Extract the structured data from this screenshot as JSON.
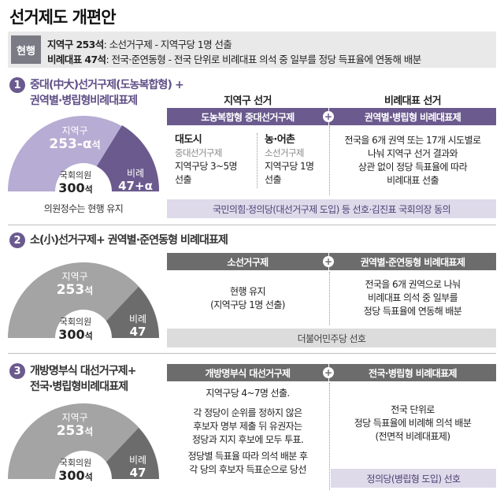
{
  "title": "선거제도 개편안",
  "colors": {
    "purple_dark": "#6b5a8e",
    "purple_light": "#b7acd3",
    "purple_pale": "#dedaea",
    "gray_dark": "#6c6c6c",
    "gray_light": "#a4a4a4",
    "gray_pale": "#dcdcdc",
    "badge_gray": "#7b7b85"
  },
  "current": {
    "tag": "현행",
    "district_label": "지역구 253석",
    "district_desc": ": 소선거구제 - 지역구당 1명 선출",
    "pr_label": "비례대표 47석",
    "pr_desc": ": 전국·준연동형 - 전국 단위로 비례대표 의석 중 일부를 정당 득표율에 연동해 배분"
  },
  "options": [
    {
      "number": "1",
      "title_line1": "중대(中大)선거구제(도농복합형) +",
      "title_line2": "권역별·병립형비례대표제",
      "seats": {
        "district_label": "지역구",
        "district_value": "253-α",
        "district_unit": "석",
        "total_label": "국회의원",
        "total_value": "300",
        "total_unit": "석",
        "pr_label": "비례",
        "pr_value": "47+α"
      },
      "note": "의원정수는 현행 유지",
      "col_head_left": "지역구 선거",
      "col_head_right": "비례대표 선거",
      "bar_left": "도농복합형 중대선거구제",
      "bar_right": "권역별·병립형 비례대표제",
      "plus": "+",
      "urban_title": "대도시",
      "urban_sub": "중대선거구제",
      "urban_desc_1": "지역구당 3~5명",
      "urban_desc_2": "선출",
      "rural_title": "농·어촌",
      "rural_sub": "소선거구제",
      "rural_desc_1": "지역구당 1명",
      "rural_desc_2": "선출",
      "right_desc": [
        "전국을 6개 권역 또는 17개 시도별로",
        "나눠 지역구 선거 결과와",
        "상관 없이 정당 득표율에 따라",
        "비례대표 선출"
      ],
      "support": "국민의힘·정의당(대선거구제 도입) 등 선호·김진표 국회의장 동의"
    },
    {
      "number": "2",
      "title_line1": "소(小)선거구제+ 권역별·준연동형 비례대표제",
      "seats": {
        "district_label": "지역구",
        "district_value": "253",
        "district_unit": "석",
        "total_label": "국회의원",
        "total_value": "300",
        "total_unit": "석",
        "pr_label": "비례",
        "pr_value": "47"
      },
      "bar_left": "소선거구제",
      "bar_right": "권역별·준연동형 비례대표제",
      "plus": "+",
      "left_desc": [
        "현행 유지",
        "(지역구당 1명 선출)"
      ],
      "right_desc": [
        "전국을 6개 권역으로 나눠",
        "비례대표 의석 중 일부를",
        "정당 득표율에 연동해 배분"
      ],
      "support": "더불어민주당 선호"
    },
    {
      "number": "3",
      "title_line1": "개방명부식 대선거구제+",
      "title_line2": "전국·병립형비례대표제",
      "seats": {
        "district_label": "지역구",
        "district_value": "253",
        "district_unit": "석",
        "total_label": "국회의원",
        "total_value": "300",
        "total_unit": "석",
        "pr_label": "비례",
        "pr_value": "47"
      },
      "bar_left": "개방명부식 대선거구제",
      "bar_right": "전국·병립형 비례대표제",
      "plus": "+",
      "left_desc_1": "지역구당 4~7명 선출.",
      "left_desc_2": [
        "각 정당이 순위를 정하지 않은",
        "후보자 명부 제출 뒤 유권자는",
        "정당과 지지 후보에 모두 투표."
      ],
      "left_desc_3": [
        "정당별 득표율 따라 의석 배분 후",
        "각 당의 후보자 득표순으로 당선"
      ],
      "right_desc": [
        "전국 단위로",
        "정당 득표율에 비례해 의석 배분",
        "(전면적 비례대표제)"
      ],
      "support": "정의당(병립형 도입) 선호"
    }
  ]
}
